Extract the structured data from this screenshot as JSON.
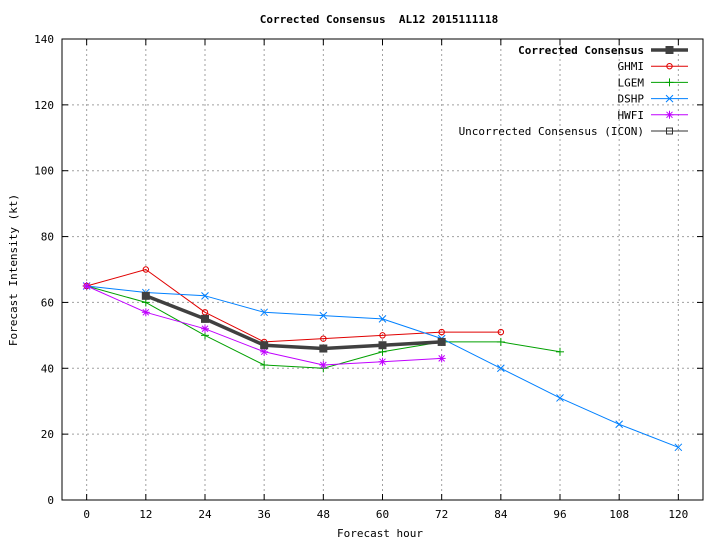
{
  "chart_data": {
    "type": "line",
    "title": "Corrected Consensus  AL12 2015111118",
    "xlabel": "Forecast hour",
    "ylabel": "Forecast Intensity (kt)",
    "xlim": [
      -5,
      125
    ],
    "ylim": [
      0,
      140
    ],
    "xticks": [
      0,
      12,
      24,
      36,
      48,
      60,
      72,
      84,
      96,
      108,
      120
    ],
    "yticks": [
      0,
      20,
      40,
      60,
      80,
      100,
      120,
      140
    ],
    "grid": true,
    "legend_position": "top-right",
    "series": [
      {
        "name": "Corrected Consensus",
        "color": "#404040",
        "marker": "filled-square",
        "bold": true,
        "x": [
          12,
          24,
          36,
          48,
          60,
          72
        ],
        "values": [
          62,
          55,
          47,
          46,
          47,
          48
        ]
      },
      {
        "name": "GHMI",
        "color": "#e00000",
        "marker": "circle",
        "x": [
          0,
          12,
          24,
          36,
          48,
          60,
          72,
          84
        ],
        "values": [
          65,
          70,
          57,
          48,
          49,
          50,
          51,
          51
        ]
      },
      {
        "name": "LGEM",
        "color": "#00a000",
        "marker": "plus",
        "x": [
          0,
          12,
          24,
          36,
          48,
          60,
          72,
          84,
          96
        ],
        "values": [
          65,
          60,
          50,
          41,
          40,
          45,
          48,
          48,
          45
        ]
      },
      {
        "name": "DSHP",
        "color": "#0080ff",
        "marker": "x",
        "x": [
          0,
          12,
          24,
          36,
          48,
          60,
          72,
          84,
          96,
          108,
          120
        ],
        "values": [
          65,
          63,
          62,
          57,
          56,
          55,
          49,
          40,
          31,
          23,
          16
        ]
      },
      {
        "name": "HWFI",
        "color": "#c000ff",
        "marker": "star",
        "x": [
          0,
          12,
          24,
          36,
          48,
          60,
          72
        ],
        "values": [
          65,
          57,
          52,
          45,
          41,
          42,
          43
        ]
      },
      {
        "name": "Uncorrected Consensus (ICON)",
        "color": "#303030",
        "marker": "open-square",
        "x": [
          12,
          24,
          36,
          48,
          60,
          72
        ],
        "values": [
          62,
          55,
          47,
          46,
          47,
          48
        ]
      }
    ]
  }
}
